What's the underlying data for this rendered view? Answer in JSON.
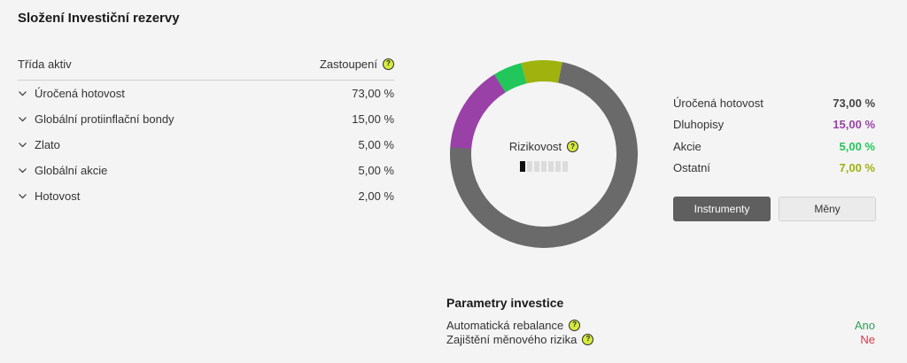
{
  "title": "Složení Investiční rezervy",
  "table": {
    "col_class": "Třída aktiv",
    "col_share": "Zastoupení",
    "rows": [
      {
        "label": "Úročená hotovost",
        "value": "73,00 %"
      },
      {
        "label": "Globální protiinflační bondy",
        "value": "15,00 %"
      },
      {
        "label": "Zlato",
        "value": "5,00 %"
      },
      {
        "label": "Globální akcie",
        "value": "5,00 %"
      },
      {
        "label": "Hotovost",
        "value": "2,00 %"
      }
    ]
  },
  "donut": {
    "center_label": "Rizikovost",
    "risk_level": 1,
    "risk_max": 7,
    "segments": [
      {
        "share": 73,
        "color": "#6a6a6a"
      },
      {
        "share": 15,
        "color": "#9a41a8"
      },
      {
        "share": 5,
        "color": "#22c65a"
      },
      {
        "share": 7,
        "color": "#9fb20e"
      }
    ]
  },
  "legend": [
    {
      "label": "Úročená hotovost",
      "value": "73,00 %",
      "color": "#444444"
    },
    {
      "label": "Dluhopisy",
      "value": "15,00 %",
      "color": "#9a41a8"
    },
    {
      "label": "Akcie",
      "value": "5,00 %",
      "color": "#22c65a"
    },
    {
      "label": "Ostatní",
      "value": "7,00 %",
      "color": "#9fb20e"
    }
  ],
  "buttons": {
    "instruments": "Instrumenty",
    "currencies": "Měny"
  },
  "params": {
    "title": "Parametry investice",
    "rows": [
      {
        "label": "Automatická rebalance",
        "value": "Ano",
        "color": "#2f9e55"
      },
      {
        "label": "Zajištění měnového rizika",
        "value": "Ne",
        "color": "#d23a4a"
      }
    ]
  }
}
